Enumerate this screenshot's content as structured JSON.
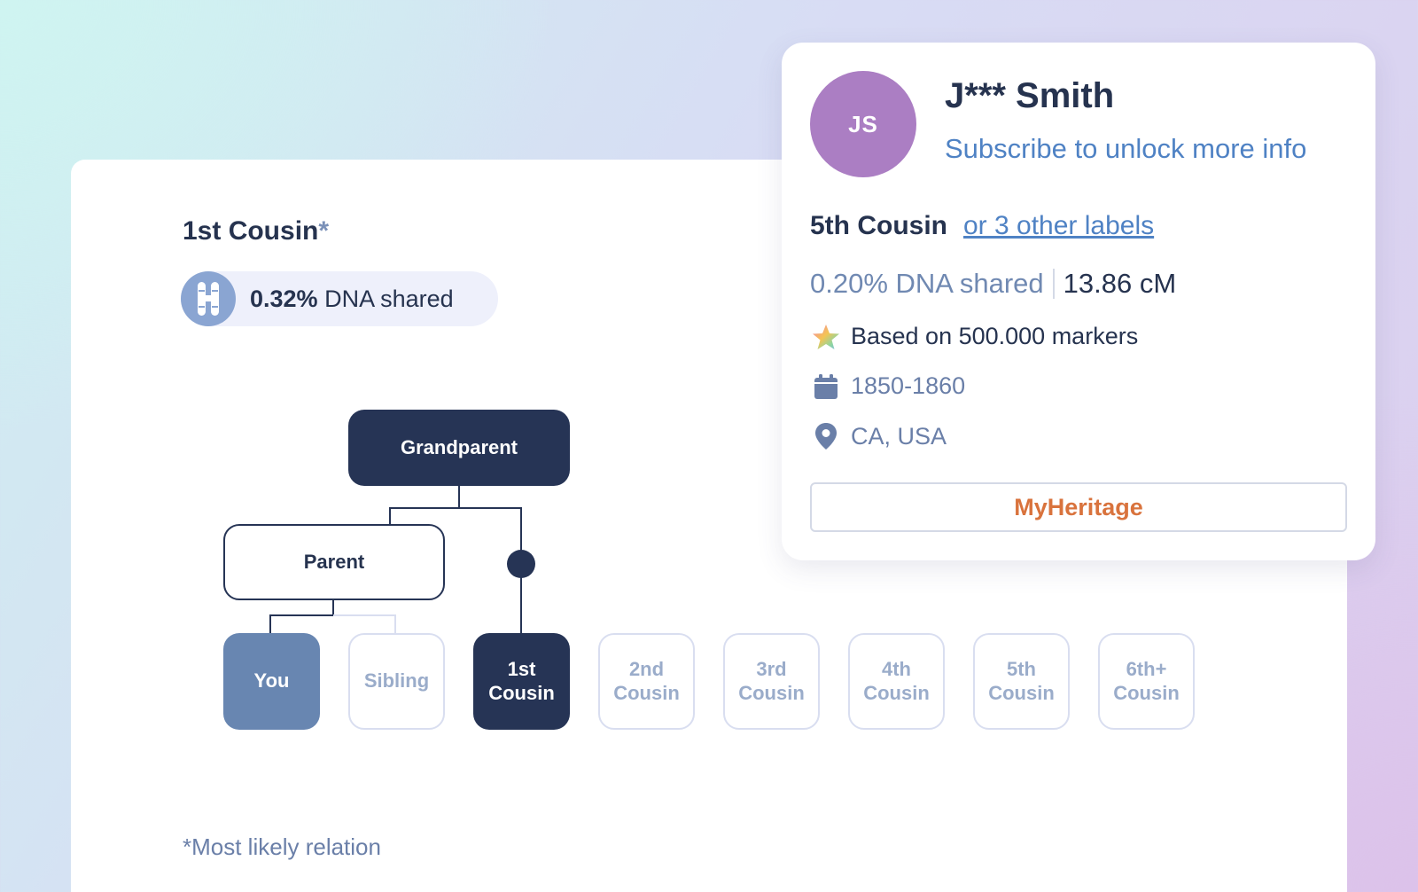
{
  "relationship": {
    "title": "1st Cousin",
    "title_marker": "*",
    "dna_percent": "0.32%",
    "dna_label": "DNA shared"
  },
  "tree": {
    "grandparent": "Grandparent",
    "parent": "Parent",
    "tiles": {
      "you": "You",
      "sibling": "Sibling",
      "first_cousin": "1st\nCousin",
      "second_cousin": "2nd\nCousin",
      "third_cousin": "3rd\nCousin",
      "fourth_cousin": "4th\nCousin",
      "fifth_cousin": "5th\nCousin",
      "sixth_cousin": "6th+\nCousin"
    }
  },
  "footnote": "*Most likely relation",
  "profile": {
    "initials": "JS",
    "name": "J*** Smith",
    "subscribe_link": "Subscribe to unlock more info",
    "relationship": "5th Cousin",
    "other_labels_link": "or 3 other labels",
    "dna_shared": "0.20% DNA shared",
    "centimorgans": "13.86 cM",
    "markers": "Based on 500.000 markers",
    "dates": "1850-1860",
    "location": "CA, USA",
    "provider_button": "MyHeritage"
  },
  "icons": {
    "chromosome": "chromosome-icon",
    "star": "star-icon",
    "calendar": "calendar-icon",
    "location": "location-pin-icon"
  },
  "colors": {
    "navy": "#263455",
    "link_blue": "#4f82c4",
    "avatar": "#ab7ec3",
    "you_tile": "#6886b1",
    "brand_orange": "#d9733d"
  }
}
